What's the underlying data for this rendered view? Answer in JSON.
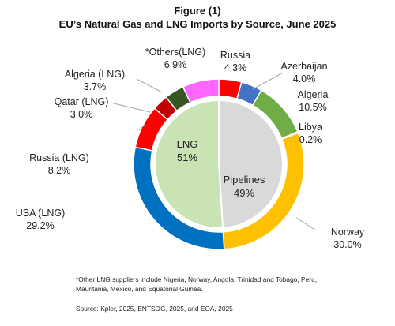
{
  "figure": {
    "label": "Figure (1)",
    "title": "EU’s Natural Gas and LNG Imports by Source, June 2025"
  },
  "chart_data": {
    "type": "pie",
    "subtype": "nested-donut",
    "title": "EU’s Natural Gas and LNG Imports by Source, June 2025",
    "inner_ring": [
      {
        "label": "LNG",
        "value": 51,
        "display": "51%",
        "color": "#c9e3b4"
      },
      {
        "label": "Pipelines",
        "value": 49,
        "display": "49%",
        "color": "#d9d9d9"
      }
    ],
    "outer_ring": [
      {
        "label": "Russia",
        "value": 4.3,
        "display": "4.3%",
        "color": "#ff0000"
      },
      {
        "label": "Azerbaijan",
        "value": 4.0,
        "display": "4.0%",
        "color": "#4472c4"
      },
      {
        "label": "Algeria",
        "value": 10.5,
        "display": "10.5%",
        "color": "#70ad47"
      },
      {
        "label": "Libya",
        "value": 0.2,
        "display": "0.2%",
        "color": "#bf9000"
      },
      {
        "label": "Norway",
        "value": 30.0,
        "display": "30.0%",
        "color": "#ffc000"
      },
      {
        "label": "USA (LNG)",
        "value": 29.2,
        "display": "29.2%",
        "color": "#0070c0"
      },
      {
        "label": "Russia (LNG)",
        "value": 8.2,
        "display": "8.2%",
        "color": "#ff0000"
      },
      {
        "label": "Qatar (LNG)",
        "value": 3.0,
        "display": "3.0%",
        "color": "#c00000"
      },
      {
        "label": "Algeria  (LNG)",
        "value": 3.7,
        "display": "3.7%",
        "color": "#375623"
      },
      {
        "label": "*Others(LNG)",
        "value": 6.9,
        "display": "6.9%",
        "color": "#ff66ff"
      }
    ]
  },
  "footnote": "*Other LNG suppliers include Nigeria, Norway, Angola, Trinidad and Tobago, Peru, Mauritania, Mexico, and Equatorial Guinea.",
  "source": "Source: Kpler, 2025, ENTSOG, 2025, and EOA, 2025"
}
